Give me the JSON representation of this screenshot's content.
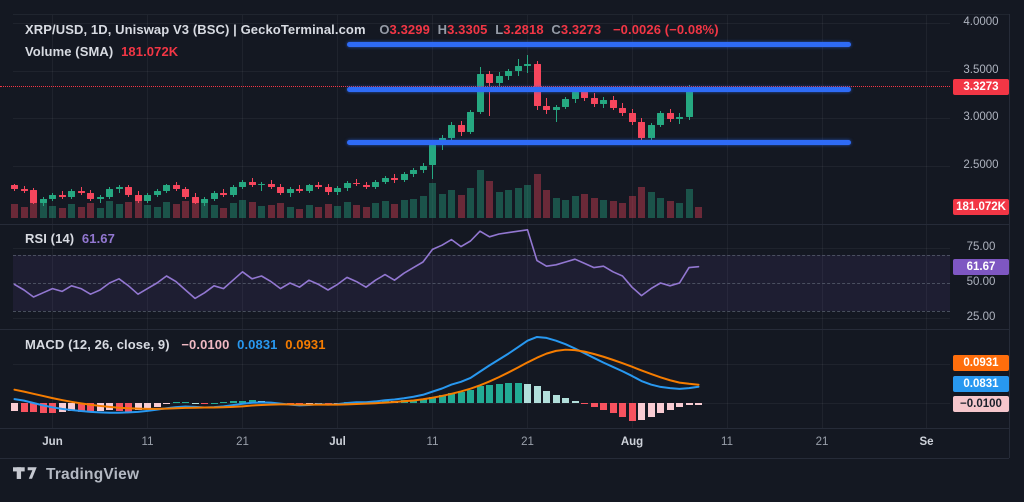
{
  "header": {
    "title": "XRP/USD, 1D, Uniswap V3 (BSC) | GeckoTerminal.com",
    "ohlc": {
      "o_label": "O",
      "o": "3.3299",
      "h_label": "H",
      "h": "3.3305",
      "l_label": "L",
      "l": "3.2818",
      "c_label": "C",
      "c": "3.3273",
      "change": "−0.0026 (−0.08%)"
    },
    "volume_row": {
      "label": "Volume (SMA)",
      "value": "181.072K"
    }
  },
  "rsi_pane": {
    "label": "RSI (14)",
    "value": "61.67",
    "badge": "61.67"
  },
  "macd_pane": {
    "label": "MACD (12, 26, close, 9)",
    "hist_value": "−0.0100",
    "macd_value": "0.0831",
    "signal_value": "0.0931",
    "badge_signal": "0.0931",
    "badge_macd": "0.0831",
    "badge_hist": "−0.0100"
  },
  "price_axis": {
    "ticks": [
      {
        "label": "4.0000",
        "p": 4.0
      },
      {
        "label": "3.5000",
        "p": 3.5
      },
      {
        "label": "3.0000",
        "p": 3.0
      },
      {
        "label": "2.5000",
        "p": 2.5
      }
    ],
    "price_badge": "3.3273",
    "volume_badge": "181.072K"
  },
  "rsi_axis": {
    "ticks": [
      {
        "label": "75.00",
        "v": 75
      },
      {
        "label": "50.00",
        "v": 50
      },
      {
        "label": "25.00",
        "v": 25
      }
    ]
  },
  "time_axis": {
    "ticks": [
      {
        "label": "Jun",
        "i": 4,
        "major": true
      },
      {
        "label": "11",
        "i": 14
      },
      {
        "label": "21",
        "i": 24
      },
      {
        "label": "Jul",
        "i": 34,
        "major": true
      },
      {
        "label": "11",
        "i": 44
      },
      {
        "label": "21",
        "i": 54
      },
      {
        "label": "Aug",
        "i": 65,
        "major": true
      },
      {
        "label": "11",
        "i": 75
      },
      {
        "label": "21",
        "i": 85
      },
      {
        "label": "Se",
        "i": 96,
        "major": true
      }
    ]
  },
  "footer": {
    "brand": "TradingView"
  },
  "colors": {
    "up": "#26a881",
    "down": "#f6465d",
    "vol_up": "rgba(38,168,130,0.42)",
    "vol_down": "rgba(246,70,93,0.38)",
    "level_blue": "#2e6bf6",
    "rsi_line": "#9277d1",
    "macd_line": "#2898f0",
    "signal_line": "#f57c00",
    "hist_pos": "#22ab94",
    "hist_pos_weak": "#b2dfdb",
    "hist_neg": "#f7525f",
    "hist_neg_weak": "#f9ccd3",
    "badge_red": "#f23645",
    "badge_purple": "#7e57c2",
    "badge_orange": "#ff6e0c",
    "badge_blue": "#2898f0",
    "badge_pink": "#f5c6cc",
    "badge_pink_text": "#1b202b"
  },
  "chart_data": {
    "type": "candlestick",
    "title": "XRP/USD 1D with Volume, RSI(14), MACD(12,26,close,9)",
    "price_range": [
      2.5,
      4.0
    ],
    "rsi_range": [
      25,
      75
    ],
    "last_price": 3.3273,
    "levels": [
      {
        "price": 3.77,
        "i1": 35,
        "i2": 88
      },
      {
        "price": 3.3,
        "i1": 35,
        "i2": 88
      },
      {
        "price": 2.74,
        "i1": 35,
        "i2": 88
      }
    ],
    "candles": [
      [
        2.29,
        2.31,
        2.23,
        2.25,
        150
      ],
      [
        2.25,
        2.28,
        2.21,
        2.23,
        120
      ],
      [
        2.24,
        2.26,
        2.09,
        2.11,
        260
      ],
      [
        2.11,
        2.17,
        2.07,
        2.15,
        180
      ],
      [
        2.15,
        2.21,
        2.13,
        2.19,
        130
      ],
      [
        2.19,
        2.23,
        2.15,
        2.17,
        110
      ],
      [
        2.17,
        2.25,
        2.15,
        2.23,
        150
      ],
      [
        2.23,
        2.27,
        2.19,
        2.21,
        120
      ],
      [
        2.21,
        2.24,
        2.13,
        2.15,
        160
      ],
      [
        2.15,
        2.19,
        2.11,
        2.17,
        110
      ],
      [
        2.17,
        2.27,
        2.15,
        2.25,
        180
      ],
      [
        2.25,
        2.29,
        2.21,
        2.27,
        150
      ],
      [
        2.27,
        2.29,
        2.17,
        2.19,
        170
      ],
      [
        2.19,
        2.23,
        2.11,
        2.13,
        190
      ],
      [
        2.13,
        2.21,
        2.11,
        2.19,
        140
      ],
      [
        2.19,
        2.25,
        2.17,
        2.23,
        120
      ],
      [
        2.23,
        2.31,
        2.21,
        2.29,
        170
      ],
      [
        2.29,
        2.33,
        2.23,
        2.25,
        150
      ],
      [
        2.25,
        2.27,
        2.15,
        2.17,
        180
      ],
      [
        2.17,
        2.21,
        2.09,
        2.11,
        200
      ],
      [
        2.11,
        2.17,
        2.07,
        2.15,
        160
      ],
      [
        2.15,
        2.23,
        2.13,
        2.21,
        140
      ],
      [
        2.21,
        2.25,
        2.17,
        2.19,
        110
      ],
      [
        2.19,
        2.29,
        2.17,
        2.27,
        160
      ],
      [
        2.27,
        2.35,
        2.25,
        2.33,
        200
      ],
      [
        2.33,
        2.37,
        2.27,
        2.29,
        170
      ],
      [
        2.29,
        2.33,
        2.23,
        2.31,
        130
      ],
      [
        2.31,
        2.35,
        2.25,
        2.27,
        140
      ],
      [
        2.27,
        2.31,
        2.19,
        2.21,
        160
      ],
      [
        2.21,
        2.27,
        2.17,
        2.25,
        120
      ],
      [
        2.25,
        2.29,
        2.21,
        2.23,
        100
      ],
      [
        2.23,
        2.31,
        2.21,
        2.29,
        140
      ],
      [
        2.29,
        2.33,
        2.25,
        2.27,
        120
      ],
      [
        2.27,
        2.31,
        2.19,
        2.22,
        150
      ],
      [
        2.22,
        2.28,
        2.19,
        2.26,
        130
      ],
      [
        2.26,
        2.34,
        2.23,
        2.32,
        170
      ],
      [
        2.32,
        2.36,
        2.28,
        2.3,
        140
      ],
      [
        2.3,
        2.33,
        2.25,
        2.27,
        120
      ],
      [
        2.27,
        2.35,
        2.25,
        2.33,
        160
      ],
      [
        2.33,
        2.39,
        2.3,
        2.37,
        180
      ],
      [
        2.37,
        2.41,
        2.32,
        2.35,
        150
      ],
      [
        2.35,
        2.43,
        2.33,
        2.41,
        190
      ],
      [
        2.41,
        2.47,
        2.38,
        2.45,
        210
      ],
      [
        2.45,
        2.53,
        2.42,
        2.5,
        240
      ],
      [
        2.5,
        2.74,
        2.36,
        2.72,
        380
      ],
      [
        2.72,
        2.82,
        2.66,
        2.79,
        260
      ],
      [
        2.79,
        2.96,
        2.75,
        2.93,
        300
      ],
      [
        2.93,
        2.97,
        2.81,
        2.85,
        250
      ],
      [
        2.85,
        3.08,
        2.83,
        3.06,
        320
      ],
      [
        3.06,
        3.54,
        3.04,
        3.46,
        520
      ],
      [
        3.46,
        3.5,
        3.02,
        3.37,
        400
      ],
      [
        3.37,
        3.48,
        3.32,
        3.44,
        280
      ],
      [
        3.44,
        3.52,
        3.4,
        3.49,
        300
      ],
      [
        3.49,
        3.62,
        3.44,
        3.55,
        330
      ],
      [
        3.55,
        3.66,
        3.47,
        3.57,
        360
      ],
      [
        3.57,
        3.6,
        3.08,
        3.13,
        480
      ],
      [
        3.13,
        3.21,
        3.04,
        3.08,
        300
      ],
      [
        3.08,
        3.14,
        2.96,
        3.12,
        220
      ],
      [
        3.12,
        3.22,
        3.09,
        3.2,
        200
      ],
      [
        3.2,
        3.3,
        3.16,
        3.27,
        240
      ],
      [
        3.27,
        3.32,
        3.18,
        3.21,
        260
      ],
      [
        3.21,
        3.26,
        3.12,
        3.15,
        220
      ],
      [
        3.15,
        3.22,
        3.11,
        3.19,
        200
      ],
      [
        3.19,
        3.23,
        3.08,
        3.11,
        180
      ],
      [
        3.11,
        3.16,
        3.02,
        3.05,
        160
      ],
      [
        3.05,
        3.1,
        2.93,
        2.96,
        240
      ],
      [
        2.96,
        3.0,
        2.76,
        2.79,
        340
      ],
      [
        2.79,
        2.95,
        2.74,
        2.93,
        280
      ],
      [
        2.93,
        3.07,
        2.9,
        3.05,
        220
      ],
      [
        3.05,
        3.09,
        2.96,
        2.99,
        180
      ],
      [
        2.99,
        3.05,
        2.94,
        3.01,
        160
      ],
      [
        3.01,
        3.35,
        2.98,
        3.33,
        310
      ],
      [
        3.3299,
        3.3305,
        3.2818,
        3.3273,
        120
      ]
    ],
    "rsi": [
      49,
      45,
      40,
      43,
      46,
      44,
      48,
      46,
      42,
      45,
      50,
      53,
      48,
      42,
      46,
      50,
      55,
      51,
      45,
      39,
      43,
      48,
      46,
      52,
      58,
      53,
      55,
      51,
      46,
      50,
      47,
      52,
      49,
      45,
      49,
      54,
      51,
      47,
      52,
      56,
      52,
      57,
      61,
      65,
      74,
      77,
      81,
      76,
      80,
      87,
      83,
      85,
      86,
      87,
      88,
      66,
      62,
      63,
      65,
      67,
      64,
      61,
      62,
      58,
      55,
      47,
      41,
      46,
      50,
      48,
      50,
      61,
      61.67
    ],
    "macd": [
      0.02,
      0.012,
      0.0,
      -0.012,
      -0.022,
      -0.03,
      -0.036,
      -0.041,
      -0.045,
      -0.048,
      -0.05,
      -0.05,
      -0.048,
      -0.045,
      -0.04,
      -0.034,
      -0.027,
      -0.021,
      -0.018,
      -0.02,
      -0.023,
      -0.021,
      -0.017,
      -0.011,
      -0.004,
      0.001,
      0.003,
      0.002,
      -0.003,
      -0.008,
      -0.012,
      -0.01,
      -0.006,
      -0.008,
      -0.006,
      0.0,
      0.004,
      0.004,
      0.008,
      0.014,
      0.018,
      0.024,
      0.032,
      0.042,
      0.058,
      0.074,
      0.094,
      0.108,
      0.128,
      0.16,
      0.192,
      0.222,
      0.252,
      0.285,
      0.318,
      0.337,
      0.332,
      0.318,
      0.3,
      0.278,
      0.254,
      0.23,
      0.206,
      0.184,
      0.162,
      0.138,
      0.112,
      0.094,
      0.082,
      0.076,
      0.072,
      0.076,
      0.0831
    ],
    "signal": [
      0.068,
      0.058,
      0.047,
      0.036,
      0.025,
      0.015,
      0.006,
      -0.002,
      -0.009,
      -0.015,
      -0.02,
      -0.024,
      -0.027,
      -0.029,
      -0.03,
      -0.03,
      -0.029,
      -0.027,
      -0.025,
      -0.024,
      -0.023,
      -0.023,
      -0.022,
      -0.02,
      -0.017,
      -0.013,
      -0.01,
      -0.008,
      -0.007,
      -0.007,
      -0.008,
      -0.008,
      -0.008,
      -0.008,
      -0.008,
      -0.007,
      -0.005,
      -0.003,
      -0.001,
      0.002,
      0.005,
      0.009,
      0.013,
      0.019,
      0.027,
      0.036,
      0.047,
      0.059,
      0.073,
      0.09,
      0.11,
      0.132,
      0.156,
      0.181,
      0.207,
      0.231,
      0.252,
      0.266,
      0.272,
      0.27,
      0.262,
      0.25,
      0.236,
      0.22,
      0.203,
      0.185,
      0.166,
      0.148,
      0.131,
      0.116,
      0.104,
      0.098,
      0.0931
    ],
    "hist": [
      -0.04,
      -0.044,
      -0.048,
      -0.05,
      -0.052,
      -0.046,
      -0.04,
      -0.044,
      -0.048,
      -0.042,
      -0.036,
      -0.04,
      -0.044,
      -0.036,
      -0.028,
      -0.018,
      -0.006,
      0.003,
      0.005,
      0.001,
      -0.004,
      0.001,
      0.004,
      0.008,
      0.012,
      0.013,
      0.01,
      0.006,
      -0.003,
      -0.007,
      -0.009,
      -0.005,
      -0.002,
      -0.004,
      -0.001,
      0.004,
      0.007,
      0.005,
      0.007,
      0.01,
      0.009,
      0.013,
      0.017,
      0.022,
      0.03,
      0.04,
      0.052,
      0.056,
      0.066,
      0.085,
      0.092,
      0.096,
      0.1,
      0.103,
      0.098,
      0.085,
      0.062,
      0.042,
      0.024,
      0.01,
      -0.006,
      -0.02,
      -0.034,
      -0.05,
      -0.07,
      -0.092,
      -0.085,
      -0.07,
      -0.052,
      -0.036,
      -0.022,
      -0.012,
      -0.01
    ]
  }
}
